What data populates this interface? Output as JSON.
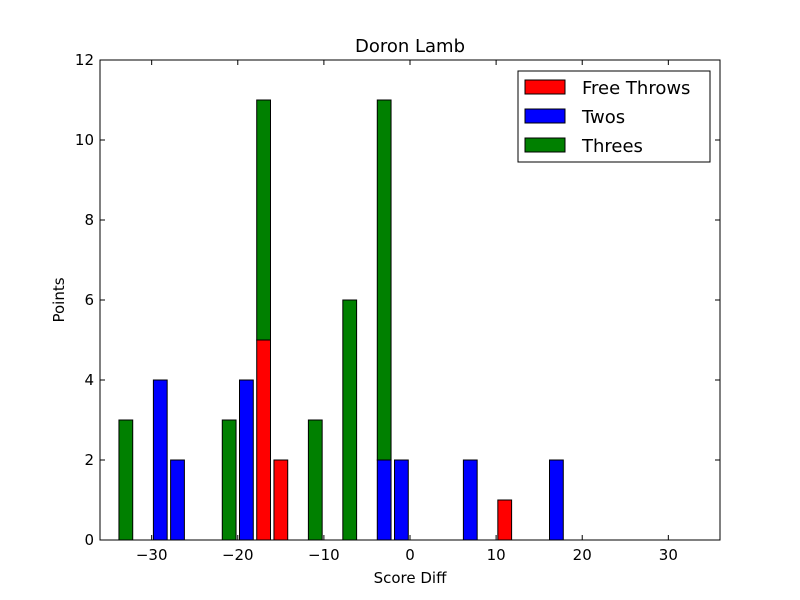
{
  "chart_data": {
    "type": "bar",
    "title": "Doron Lamb",
    "xlabel": "Score Diff",
    "ylabel": "Points",
    "xlim": [
      -36,
      36
    ],
    "ylim": [
      0,
      12
    ],
    "xticks": [
      -30,
      -20,
      -10,
      0,
      10,
      20,
      30
    ],
    "xtick_labels": [
      "−30",
      "−20",
      "−10",
      "0",
      "10",
      "20",
      "30"
    ],
    "yticks": [
      0,
      2,
      4,
      6,
      8,
      10,
      12
    ],
    "ytick_labels": [
      "0",
      "2",
      "4",
      "6",
      "8",
      "10",
      "12"
    ],
    "bar_width": 1.6,
    "stacked": true,
    "legend_position": "top-right",
    "grid": false,
    "x": [
      -35,
      -33,
      -31,
      -29,
      -27,
      -25,
      -23,
      -21,
      -19,
      -17,
      -15,
      -13,
      -11,
      -9,
      -7,
      -5,
      -3,
      -1,
      1,
      3,
      5,
      7,
      9,
      11,
      13,
      15,
      17,
      19,
      21,
      23,
      25,
      27,
      29,
      31,
      33,
      35
    ],
    "series": [
      {
        "name": "Free Throws",
        "color": "#ff0000",
        "values": [
          0,
          0,
          0,
          0,
          0,
          0,
          0,
          0,
          0,
          5,
          2,
          0,
          0,
          0,
          0,
          0,
          0,
          0,
          0,
          0,
          0,
          0,
          0,
          1,
          0,
          0,
          0,
          0,
          0,
          0,
          0,
          0,
          0,
          0,
          0,
          0
        ]
      },
      {
        "name": "Twos",
        "color": "#0000ff",
        "values": [
          0,
          0,
          0,
          4,
          2,
          0,
          0,
          0,
          4,
          0,
          0,
          0,
          0,
          0,
          0,
          0,
          2,
          2,
          0,
          0,
          0,
          2,
          0,
          0,
          0,
          0,
          2,
          0,
          0,
          0,
          0,
          0,
          0,
          0,
          0,
          0
        ]
      },
      {
        "name": "Threes",
        "color": "#008000",
        "values": [
          0,
          3,
          0,
          0,
          0,
          0,
          0,
          3,
          0,
          6,
          0,
          0,
          3,
          0,
          6,
          0,
          9,
          0,
          0,
          0,
          0,
          0,
          0,
          0,
          0,
          0,
          0,
          0,
          0,
          0,
          0,
          0,
          0,
          0,
          0,
          0
        ]
      }
    ]
  }
}
